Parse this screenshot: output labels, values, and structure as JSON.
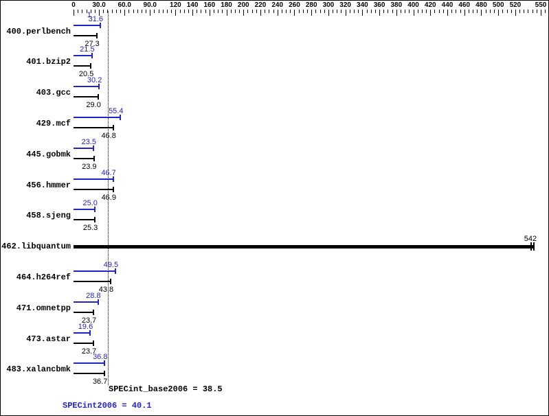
{
  "chart_data": {
    "type": "bar",
    "orientation": "horizontal",
    "title": "",
    "x_axis": {
      "position": "top",
      "tick_labels": [
        "0",
        "30.0",
        "60.0",
        "90.0",
        "120",
        "140",
        "160",
        "180",
        "200",
        "220",
        "240",
        "260",
        "280",
        "300",
        "320",
        "340",
        "360",
        "380",
        "400",
        "420",
        "440",
        "460",
        "480",
        "500",
        "520",
        "550"
      ],
      "tick_values": [
        0,
        30,
        60,
        90,
        120,
        140,
        160,
        180,
        200,
        220,
        240,
        260,
        280,
        300,
        320,
        340,
        360,
        380,
        400,
        420,
        440,
        460,
        480,
        500,
        520,
        550
      ],
      "minor_tick_step": 5,
      "range": [
        0,
        555
      ]
    },
    "series_meta": {
      "peak": {
        "name": "SPECint2006",
        "color": "#2222cc"
      },
      "base": {
        "name": "SPECint_base2006",
        "color": "#000000"
      }
    },
    "rows": [
      {
        "benchmark": "400.perlbench",
        "peak": 31.6,
        "base": 27.3
      },
      {
        "benchmark": "401.bzip2",
        "peak": 21.5,
        "base": 20.5
      },
      {
        "benchmark": "403.gcc",
        "peak": 30.2,
        "base": 29.0
      },
      {
        "benchmark": "429.mcf",
        "peak": 55.4,
        "base": 46.8
      },
      {
        "benchmark": "445.gobmk",
        "peak": 23.5,
        "base": 23.9
      },
      {
        "benchmark": "456.hmmer",
        "peak": 46.7,
        "base": 46.9
      },
      {
        "benchmark": "458.sjeng",
        "peak": 25.0,
        "base": 25.3
      },
      {
        "benchmark": "462.libquantum",
        "peak": null,
        "base": 542,
        "single_thick_bar": true
      },
      {
        "benchmark": "464.h264ref",
        "peak": 49.5,
        "base": 43.8
      },
      {
        "benchmark": "471.omnetpp",
        "peak": 28.8,
        "base": 23.7
      },
      {
        "benchmark": "473.astar",
        "peak": 19.6,
        "base": 23.7
      },
      {
        "benchmark": "483.xalancbmk",
        "peak": 36.8,
        "base": 36.7
      }
    ],
    "reference_line": {
      "value": 40.1,
      "style": "dotted",
      "color": "#000000"
    },
    "annotations": [
      {
        "text": "1",
        "color": "#2222cc",
        "x_value": 16,
        "row": 0
      }
    ],
    "footer": {
      "base_label": "SPECint_base2006 = 38.5",
      "peak_label": "SPECint2006 = 40.1"
    }
  }
}
